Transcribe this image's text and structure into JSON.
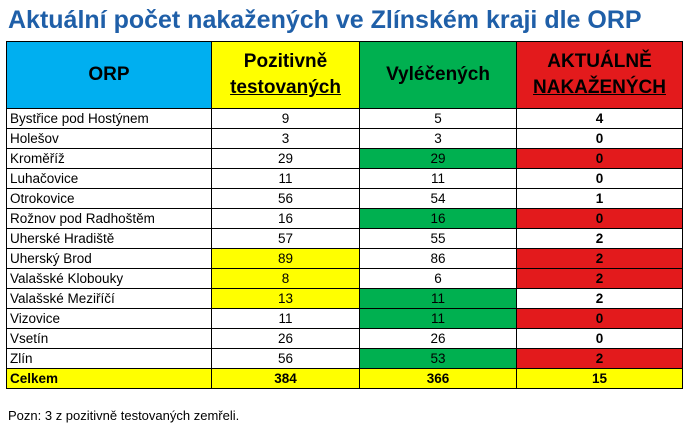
{
  "title": "Aktuální počet nakažených ve Zlínském kraji dle ORP",
  "headers": {
    "orp": "ORP",
    "pozitivne_line1": "Pozitivně",
    "pozitivne_line2": "testovaných",
    "vyleceni": "Vyléčených",
    "aktualne_line1": "AKTUÁLNĚ",
    "aktualne_line2": "NAKAŽENÝCH"
  },
  "colors": {
    "header_orp": "#00aff0",
    "yellow": "#ffff00",
    "green": "#00b050",
    "red": "#e31a1c",
    "title": "#1f5fa8"
  },
  "rows": [
    {
      "orp": "Bystřice pod Hostýnem",
      "pozitivne": "9",
      "vyleceni": "5",
      "aktualne": "4",
      "hl": [
        "",
        "",
        ""
      ]
    },
    {
      "orp": "Holešov",
      "pozitivne": "3",
      "vyleceni": "3",
      "aktualne": "0",
      "hl": [
        "",
        "",
        ""
      ]
    },
    {
      "orp": "Kroměříž",
      "pozitivne": "29",
      "vyleceni": "29",
      "aktualne": "0",
      "hl": [
        "",
        "green",
        "red"
      ]
    },
    {
      "orp": "Luhačovice",
      "pozitivne": "11",
      "vyleceni": "11",
      "aktualne": "0",
      "hl": [
        "",
        "",
        ""
      ]
    },
    {
      "orp": "Otrokovice",
      "pozitivne": "56",
      "vyleceni": "54",
      "aktualne": "1",
      "hl": [
        "",
        "",
        ""
      ]
    },
    {
      "orp": "Rožnov pod Radhoštěm",
      "pozitivne": "16",
      "vyleceni": "16",
      "aktualne": "0",
      "hl": [
        "",
        "green",
        "red"
      ]
    },
    {
      "orp": "Uherské Hradiště",
      "pozitivne": "57",
      "vyleceni": "55",
      "aktualne": "2",
      "hl": [
        "",
        "",
        ""
      ]
    },
    {
      "orp": "Uherský Brod",
      "pozitivne": "89",
      "vyleceni": "86",
      "aktualne": "2",
      "hl": [
        "yellow",
        "",
        "red"
      ]
    },
    {
      "orp": "Valašské Klobouky",
      "pozitivne": "8",
      "vyleceni": "6",
      "aktualne": "2",
      "hl": [
        "yellow",
        "",
        "red"
      ]
    },
    {
      "orp": "Valašské Meziříčí",
      "pozitivne": "13",
      "vyleceni": "11",
      "aktualne": "2",
      "hl": [
        "yellow",
        "green",
        ""
      ]
    },
    {
      "orp": "Vizovice",
      "pozitivne": "11",
      "vyleceni": "11",
      "aktualne": "0",
      "hl": [
        "",
        "green",
        "red"
      ]
    },
    {
      "orp": "Vsetín",
      "pozitivne": "26",
      "vyleceni": "26",
      "aktualne": "0",
      "hl": [
        "",
        "",
        ""
      ]
    },
    {
      "orp": "Zlín",
      "pozitivne": "56",
      "vyleceni": "53",
      "aktualne": "2",
      "hl": [
        "",
        "green",
        "red"
      ]
    }
  ],
  "total": {
    "orp": "Celkem",
    "pozitivne": "384",
    "vyleceni": "366",
    "aktualne": "15"
  },
  "note": "Pozn: 3 z pozitivně testovaných zemřeli."
}
